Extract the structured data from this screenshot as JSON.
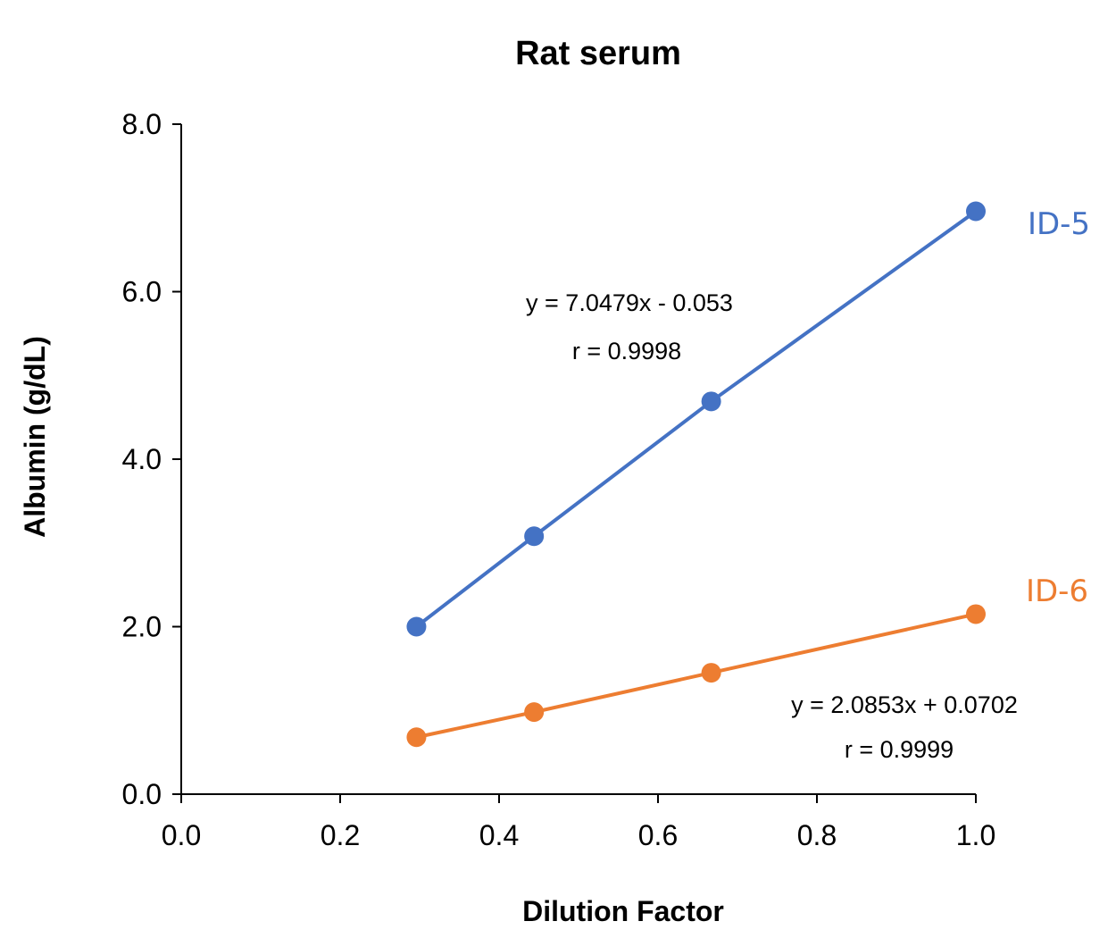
{
  "chart_data": {
    "type": "line",
    "title": "Rat serum",
    "xlabel": "Dilution Factor",
    "ylabel": "Albumin (g/dL)",
    "xlim": [
      0.0,
      1.0
    ],
    "ylim": [
      0.0,
      8.0
    ],
    "x_ticks": [
      "0.0",
      "0.2",
      "0.4",
      "0.6",
      "0.8",
      "1.0"
    ],
    "y_ticks": [
      "0.0",
      "2.0",
      "4.0",
      "6.0",
      "8.0"
    ],
    "x_tick_values": [
      0.0,
      0.2,
      0.4,
      0.6,
      0.8,
      1.0
    ],
    "y_tick_values": [
      0.0,
      2.0,
      4.0,
      6.0,
      8.0
    ],
    "grid": false,
    "series": [
      {
        "name": "ID-5",
        "color": "#4472C4",
        "x": [
          0.296,
          0.444,
          0.667,
          1.0
        ],
        "y": [
          2.0,
          3.08,
          4.69,
          6.96
        ],
        "equation": "y = 7.0479x - 0.053",
        "r": "r = 0.9998"
      },
      {
        "name": "ID-6",
        "color": "#ED7D31",
        "x": [
          0.296,
          0.444,
          0.667,
          1.0
        ],
        "y": [
          0.68,
          0.98,
          1.45,
          2.15
        ],
        "equation": "y = 2.0853x + 0.0702",
        "r": "r = 0.9999"
      }
    ]
  }
}
